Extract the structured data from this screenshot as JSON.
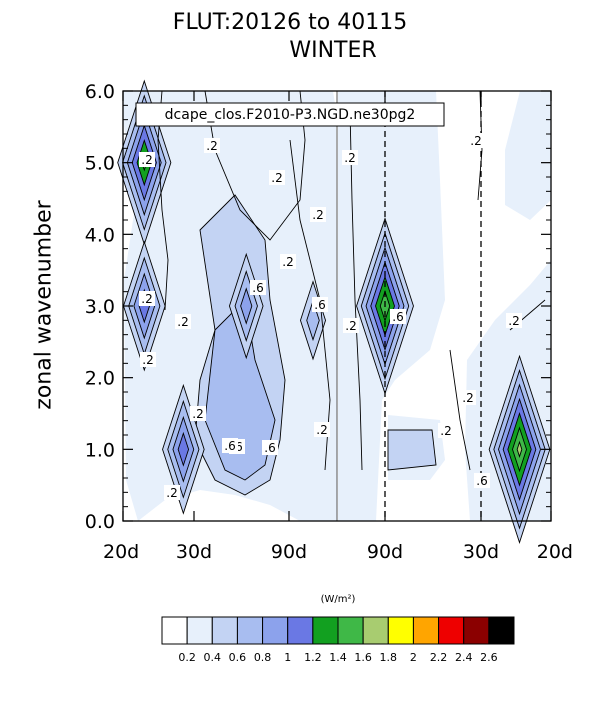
{
  "title": "FLUT:20126 to 40115",
  "subtitle": "WINTER",
  "chart_data": {
    "type": "heatmap",
    "title": "FLUT:20126 to 40115",
    "subtitle": "WINTER",
    "annotation": "dcape_clos.F2010-P3.NGD.ne30pg2",
    "ylabel": "zonal wavenumber",
    "ylim": [
      0,
      6
    ],
    "y_ticks": [
      "0.0",
      "1.0",
      "2.0",
      "3.0",
      "4.0",
      "5.0",
      "6.0"
    ],
    "x_ticks": [
      "20d",
      "30d",
      "90d",
      "90d",
      "30d",
      "20d"
    ],
    "colorbar_unit": "(W/m²)",
    "levels": [
      0.2,
      0.4,
      0.6,
      0.8,
      1,
      1.2,
      1.4,
      1.6,
      1.8,
      2,
      2.2,
      2.4,
      2.6
    ],
    "level_labels": [
      "0.2",
      "0.4",
      "0.6",
      "0.8",
      "1",
      "1.2",
      "1.4",
      "1.6",
      "1.8",
      "2",
      "2.2",
      "2.4",
      "2.6"
    ],
    "colors": [
      "#ffffff",
      "#e7f0fb",
      "#c3d3f3",
      "#a8bdf0",
      "#8ca2ec",
      "#6a78e4",
      "#12a020",
      "#3fb847",
      "#a8cc70",
      "#ffff00",
      "#ffa500",
      "#ee0000",
      "#8b0000",
      "#000000"
    ],
    "contour_labels": [
      ".2",
      ".6",
      ".6",
      ".6",
      ".6",
      ".6",
      ".6",
      ".6",
      ".2",
      ".2",
      ".2",
      ".2",
      ".2",
      ".2",
      ".2",
      ".2",
      ".2",
      ".2",
      ".2",
      ".2",
      ".2",
      ".2",
      ".2",
      ".2"
    ],
    "features": [
      {
        "name": "peak",
        "x_tick_position": 0.3,
        "y": 5.0,
        "level": 1.3
      },
      {
        "name": "peak",
        "x_tick_position": 0.3,
        "y": 3.0,
        "level": 1.0
      },
      {
        "name": "peak",
        "x_tick_position": 0.85,
        "y": 1.0,
        "level": 1.0
      },
      {
        "name": "peak",
        "x_tick_position": 1.55,
        "y": 3.0,
        "level": 0.8
      },
      {
        "name": "peak",
        "x_tick_position": 2.25,
        "y": 2.8,
        "level": 0.6
      },
      {
        "name": "peak",
        "x_tick_position": 3.0,
        "y": 3.0,
        "level": 1.4
      },
      {
        "name": "peak",
        "x_tick_position": 4.55,
        "y": 1.0,
        "level": 1.5
      }
    ]
  }
}
